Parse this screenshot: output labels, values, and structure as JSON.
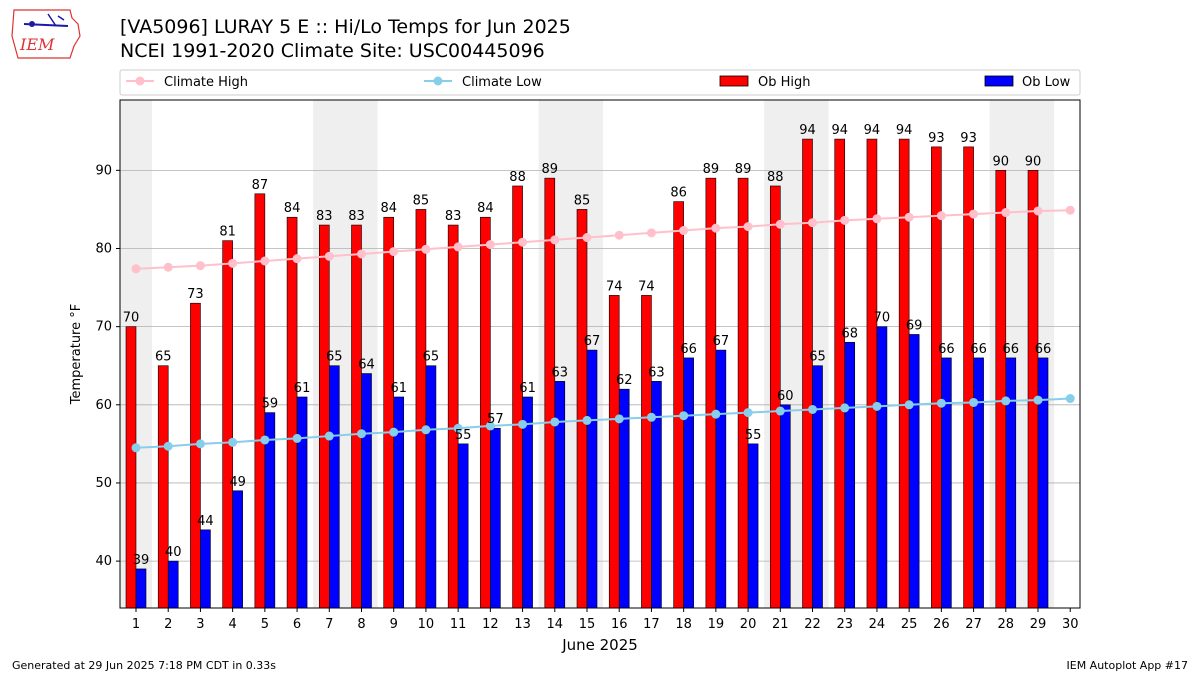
{
  "header": {
    "title_line1": "[VA5096] LURAY 5 E :: Hi/Lo Temps for Jun 2025",
    "title_line2": "NCEI 1991-2020 Climate Site: USC00445096",
    "logo_text": "IEM"
  },
  "footer": {
    "generated": "Generated at 29 Jun 2025 7:18 PM CDT in 0.33s",
    "app": "IEM Autoplot App #17"
  },
  "colors": {
    "ob_high": "#ff0000",
    "ob_low": "#0000ff",
    "climate_high": "#ffc0cb",
    "climate_low": "#87ceeb",
    "weekend_shade": "#efefef",
    "grid": "#b0b0b0"
  },
  "chart_data": {
    "type": "bar",
    "xlabel": "June 2025",
    "ylabel": "Temperature °F",
    "ylim": [
      34,
      99
    ],
    "yticks": [
      40,
      50,
      60,
      70,
      80,
      90
    ],
    "grid": "horizontal",
    "legend_position": "top",
    "weekend_days": [
      1,
      7,
      8,
      14,
      15,
      21,
      22,
      28,
      29
    ],
    "categories": [
      1,
      2,
      3,
      4,
      5,
      6,
      7,
      8,
      9,
      10,
      11,
      12,
      13,
      14,
      15,
      16,
      17,
      18,
      19,
      20,
      21,
      22,
      23,
      24,
      25,
      26,
      27,
      28,
      29,
      30
    ],
    "series": [
      {
        "name": "Climate High",
        "kind": "line",
        "values": [
          77.4,
          77.6,
          77.8,
          78.1,
          78.4,
          78.7,
          79.0,
          79.3,
          79.6,
          79.9,
          80.2,
          80.5,
          80.8,
          81.1,
          81.4,
          81.7,
          82.0,
          82.3,
          82.6,
          82.8,
          83.1,
          83.3,
          83.6,
          83.8,
          84.0,
          84.2,
          84.4,
          84.6,
          84.8,
          84.9
        ]
      },
      {
        "name": "Climate Low",
        "kind": "line",
        "values": [
          54.5,
          54.7,
          55.0,
          55.2,
          55.5,
          55.7,
          56.0,
          56.3,
          56.5,
          56.8,
          57.0,
          57.3,
          57.5,
          57.8,
          58.0,
          58.2,
          58.4,
          58.6,
          58.8,
          59.0,
          59.2,
          59.4,
          59.6,
          59.8,
          60.0,
          60.2,
          60.3,
          60.5,
          60.6,
          60.8
        ]
      },
      {
        "name": "Ob High",
        "kind": "bar",
        "values": [
          70,
          65,
          73,
          81,
          87,
          84,
          83,
          83,
          84,
          85,
          83,
          84,
          88,
          89,
          85,
          74,
          74,
          86,
          89,
          89,
          88,
          94,
          94,
          94,
          94,
          93,
          93,
          90,
          90,
          null
        ]
      },
      {
        "name": "Ob Low",
        "kind": "bar",
        "values": [
          39,
          40,
          44,
          49,
          59,
          61,
          65,
          64,
          61,
          65,
          55,
          57,
          61,
          63,
          67,
          62,
          63,
          66,
          67,
          55,
          60,
          65,
          68,
          70,
          69,
          66,
          66,
          66,
          66,
          null
        ]
      }
    ]
  }
}
